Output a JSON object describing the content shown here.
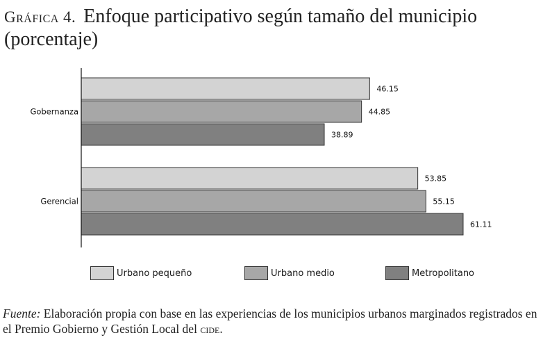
{
  "title": {
    "label": "Gráfica 4.",
    "main": "Enfoque participativo según tamaño del municipio",
    "sub": "(porcentaje)"
  },
  "chart_data": {
    "type": "bar",
    "orientation": "horizontal",
    "categories": [
      "Gobernanza",
      "Gerencial"
    ],
    "series": [
      {
        "name": "Urbano pequeño",
        "values": [
          46.15,
          53.85
        ],
        "color": "#d3d3d3"
      },
      {
        "name": "Urbano medio",
        "values": [
          44.85,
          55.15
        ],
        "color": "#a7a7a7"
      },
      {
        "name": "Metropolitano",
        "values": [
          38.89,
          61.11
        ],
        "color": "#808080"
      }
    ],
    "value_labels": [
      [
        "46.15",
        "53.85"
      ],
      [
        "44.85",
        "55.15"
      ],
      [
        "38.89",
        "61.11"
      ]
    ],
    "xlim": [
      0,
      70
    ],
    "grid": false,
    "legend_position": "bottom"
  },
  "source": {
    "prefix": "Fuente:",
    "text": "Elaboración propia con base en las experiencias de los municipios urbanos marginados registrados en el Premio Gobierno y Gestión Local del",
    "abbr": "cide",
    "end": "."
  }
}
